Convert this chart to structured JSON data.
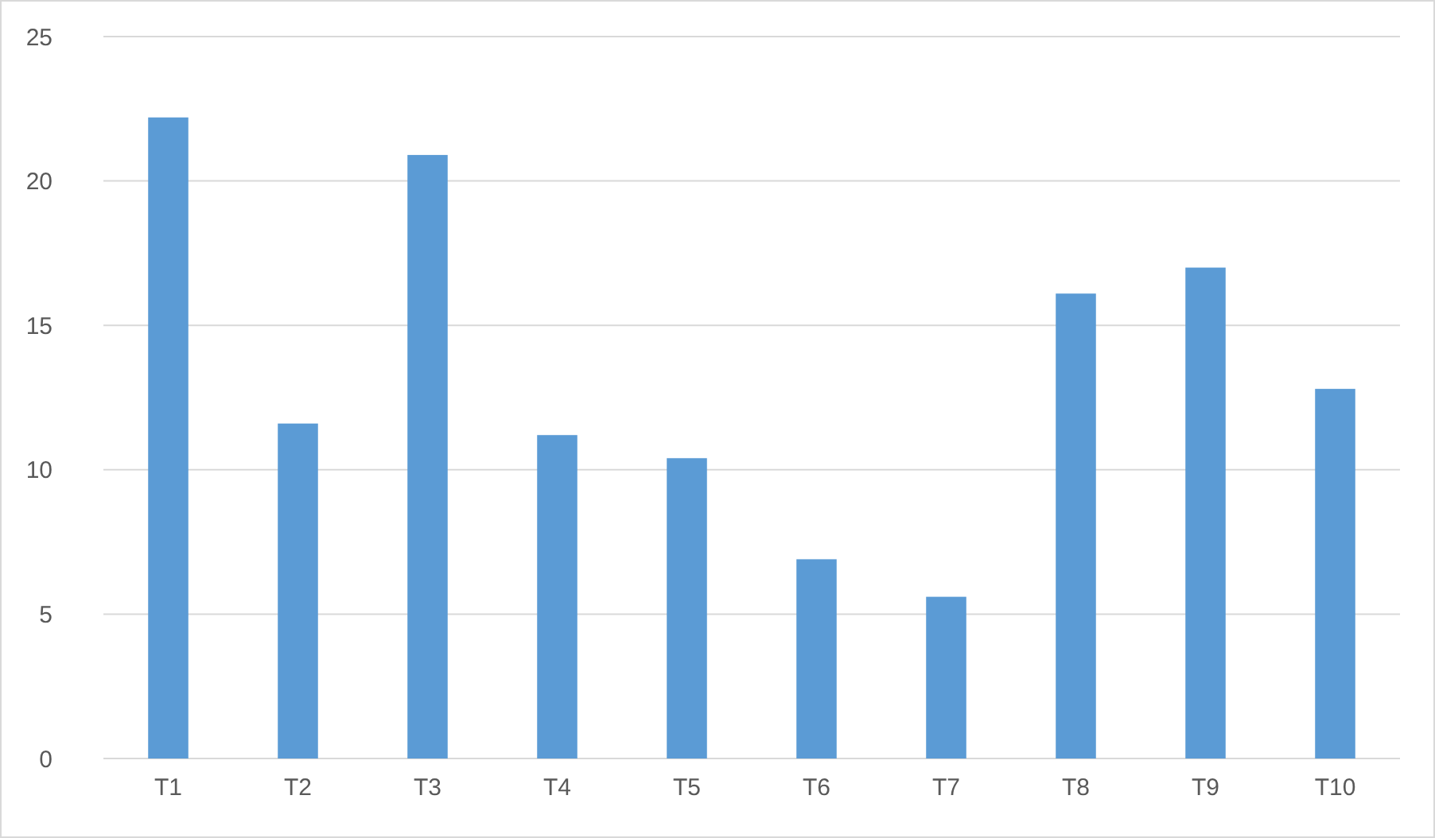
{
  "chart_data": {
    "type": "bar",
    "categories": [
      "T1",
      "T2",
      "T3",
      "T4",
      "T5",
      "T6",
      "T7",
      "T8",
      "T9",
      "T10"
    ],
    "values": [
      22.2,
      11.6,
      20.9,
      11.2,
      10.4,
      6.9,
      5.6,
      16.1,
      17,
      12.8
    ],
    "color": "#5b9bd5",
    "ylim": [
      0,
      25
    ],
    "yticks": [
      0,
      5,
      10,
      15,
      20,
      25
    ],
    "grid": "y"
  }
}
